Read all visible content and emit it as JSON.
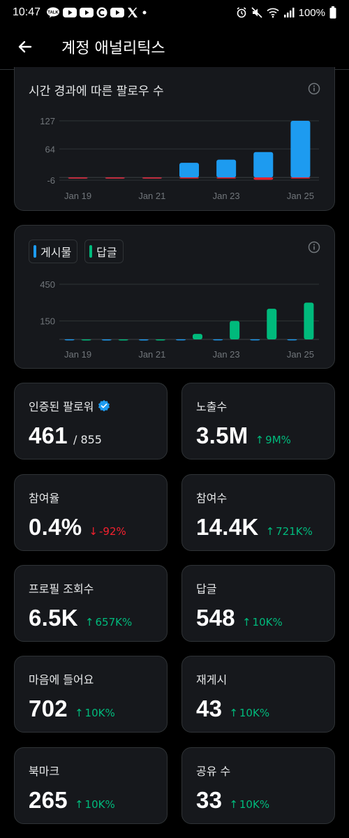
{
  "status_bar": {
    "time": "10:47",
    "battery": "100%",
    "left_icons": [
      "talk-icon",
      "youtube-icon",
      "youtube-icon",
      "c-app-icon",
      "youtube-icon",
      "x-icon",
      "dot-icon"
    ],
    "right_icons": [
      "alarm-icon",
      "mute-icon",
      "wifi-icon",
      "signal-icon"
    ]
  },
  "header": {
    "title": "계정 애널리틱스"
  },
  "followers_chart": {
    "title": "시간 경과에 따른 팔로우 수",
    "y_ticks": [
      "127",
      "64",
      "-6"
    ],
    "x_ticks": [
      "Jan 19",
      "Jan 21",
      "Jan 23",
      "Jan 25"
    ]
  },
  "posts_chart": {
    "legend": [
      {
        "label": "게시물",
        "color": "#1d9bf0"
      },
      {
        "label": "답글",
        "color": "#00ba7c"
      }
    ],
    "y_ticks": [
      "450",
      "150"
    ],
    "x_ticks": [
      "Jan 19",
      "Jan 21",
      "Jan 23",
      "Jan 25"
    ]
  },
  "chart_data": [
    {
      "type": "bar",
      "title": "시간 경과에 따른 팔로우 수",
      "categories": [
        "Jan 19",
        "Jan 20",
        "Jan 21",
        "Jan 22",
        "Jan 23",
        "Jan 24",
        "Jan 25"
      ],
      "series": [
        {
          "values": [
            0,
            0,
            0,
            33,
            40,
            57,
            127
          ],
          "color": "#1d9bf0"
        },
        {
          "values": [
            0,
            0,
            -1,
            -1,
            -1,
            -5,
            -2
          ],
          "color": "#f4212e"
        }
      ],
      "ylim": [
        -6,
        127
      ],
      "y_ticks": [
        127,
        64,
        -6
      ],
      "grid": true
    },
    {
      "type": "bar",
      "categories": [
        "Jan 19",
        "Jan 20",
        "Jan 21",
        "Jan 22",
        "Jan 23",
        "Jan 24",
        "Jan 25"
      ],
      "series": [
        {
          "name": "게시물",
          "values": [
            1,
            0,
            0,
            1,
            1,
            1,
            1
          ],
          "color": "#1d9bf0"
        },
        {
          "name": "답글",
          "values": [
            0,
            0,
            0,
            45,
            150,
            250,
            300
          ],
          "color": "#00ba7c"
        }
      ],
      "ylim": [
        0,
        450
      ],
      "y_ticks": [
        450,
        150
      ],
      "grid": true
    }
  ],
  "stats": [
    {
      "label": "인증된 팔로워",
      "value": "461",
      "total": "/ 855",
      "verified": true
    },
    {
      "label": "노출수",
      "value": "3.5M",
      "arrow": "↑",
      "change": "9M%",
      "direction": "up"
    },
    {
      "label": "참여율",
      "value": "0.4%",
      "arrow": "↓",
      "change": "-92%",
      "direction": "down"
    },
    {
      "label": "참여수",
      "value": "14.4K",
      "arrow": "↑",
      "change": "721K%",
      "direction": "up"
    },
    {
      "label": "프로필 조회수",
      "value": "6.5K",
      "arrow": "↑",
      "change": "657K%",
      "direction": "up"
    },
    {
      "label": "답글",
      "value": "548",
      "arrow": "↑",
      "change": "10K%",
      "direction": "up"
    },
    {
      "label": "마음에 들어요",
      "value": "702",
      "arrow": "↑",
      "change": "10K%",
      "direction": "up"
    },
    {
      "label": "재게시",
      "value": "43",
      "arrow": "↑",
      "change": "10K%",
      "direction": "up"
    },
    {
      "label": "북마크",
      "value": "265",
      "arrow": "↑",
      "change": "10K%",
      "direction": "up"
    },
    {
      "label": "공유 수",
      "value": "33",
      "arrow": "↑",
      "change": "10K%",
      "direction": "up"
    }
  ],
  "colors": {
    "background": "#000000",
    "card": "#16181c",
    "border": "#2f3336",
    "accent_blue": "#1d9bf0",
    "accent_green": "#00ba7c",
    "accent_red": "#f4212e",
    "verified_badge": "#1d9bf0"
  }
}
